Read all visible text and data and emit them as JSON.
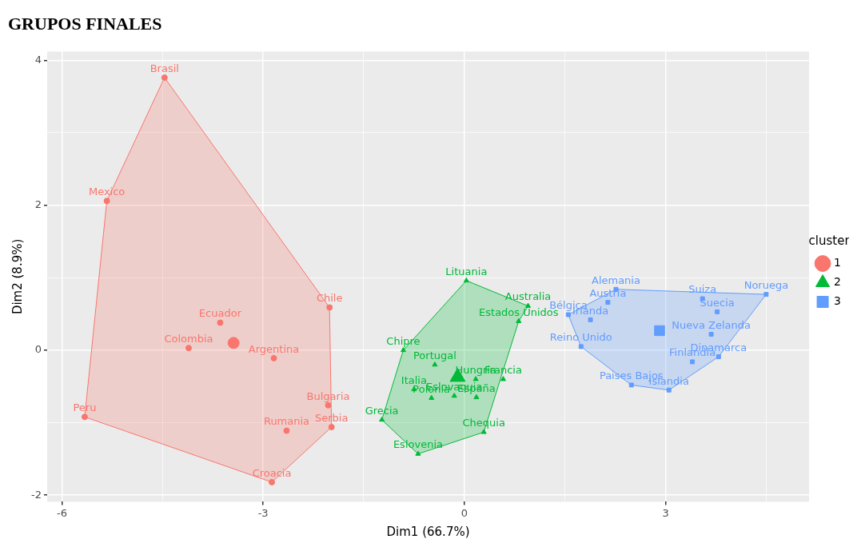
{
  "chart_data": {
    "type": "scatter",
    "title": "GRUPOS FINALES",
    "xlabel": "Dim1 (66.7%)",
    "ylabel": "Dim2 (8.9%)",
    "legend_title": "cluster",
    "legend": "right",
    "grid": true,
    "xlim": [
      -6.22,
      5.14
    ],
    "ylim": [
      -2.09,
      4.12
    ],
    "xticks": [
      -6,
      {
        "value": -4.5,
        "label": null
      },
      -3,
      {
        "value": -1.5,
        "label": null
      },
      0,
      {
        "value": 1.5,
        "label": null
      },
      3,
      {
        "value": 4.5,
        "label": null
      }
    ],
    "yticks": [
      -2,
      {
        "value": -1,
        "label": null
      },
      0,
      {
        "value": 1,
        "label": null
      },
      2,
      {
        "value": 3,
        "label": null
      },
      4
    ],
    "series": [
      {
        "type": "area",
        "color": "#f8766d",
        "x": [
          -4.47,
          -2.01,
          -1.98,
          -2.87,
          -5.66,
          -5.33,
          -4.47
        ],
        "values": [
          3.76,
          0.59,
          -1.06,
          -1.82,
          -0.92,
          2.06,
          3.76
        ]
      },
      {
        "type": "area",
        "color": "#00ba38",
        "x": [
          0.03,
          0.95,
          0.81,
          0.29,
          -0.69,
          -1.23,
          -0.91,
          0.03
        ],
        "values": [
          0.96,
          0.61,
          0.4,
          -1.13,
          -1.43,
          -0.96,
          0.0,
          0.96
        ]
      },
      {
        "type": "area",
        "color": "#619cff",
        "x": [
          2.26,
          4.5,
          3.79,
          3.05,
          2.49,
          1.74,
          1.55,
          2.26
        ],
        "values": [
          0.84,
          0.77,
          -0.09,
          -0.55,
          -0.48,
          0.05,
          0.49,
          0.84
        ]
      },
      {
        "name": "1",
        "color": "#f8766d",
        "marker": "circle",
        "x": [
          -4.47,
          -5.33,
          -2.01,
          -3.64,
          -4.11,
          -2.84,
          -2.03,
          -5.66,
          -1.98,
          -2.65,
          -2.87
        ],
        "values": [
          3.76,
          2.06,
          0.59,
          0.38,
          0.03,
          -0.11,
          -0.76,
          -0.92,
          -1.06,
          -1.11,
          -1.82
        ],
        "value_labels": [
          "Brasil",
          "Mexico",
          "Chile",
          "Ecuador",
          "Colombia",
          "Argentina",
          "Bulgaria",
          "Peru",
          "Serbia",
          "Rumania",
          "Croacia"
        ]
      },
      {
        "name": "2",
        "color": "#00ba38",
        "marker": "triangle",
        "x": [
          0.03,
          0.95,
          0.81,
          -0.91,
          -0.44,
          0.17,
          0.58,
          -0.75,
          -0.49,
          -0.15,
          0.18,
          -1.23,
          0.29,
          -0.69
        ],
        "values": [
          0.96,
          0.61,
          0.4,
          0.0,
          -0.2,
          -0.4,
          -0.4,
          -0.54,
          -0.66,
          -0.63,
          -0.65,
          -0.96,
          -1.13,
          -1.43
        ],
        "value_labels": [
          "Lituania",
          "Australia",
          "Estados Unidos",
          "Chipre",
          "Portugal",
          "Hungria",
          "Francia",
          "Italia",
          "Polonia",
          "Eslovaquia",
          "España",
          "Grecia",
          "Chequia",
          "Eslovenia"
        ]
      },
      {
        "name": "3",
        "color": "#619cff",
        "marker": "square",
        "x": [
          2.26,
          2.14,
          1.88,
          1.55,
          1.74,
          2.49,
          3.05,
          3.4,
          3.79,
          3.68,
          3.77,
          3.55,
          4.5
        ],
        "values": [
          0.84,
          0.66,
          0.42,
          0.49,
          0.05,
          -0.48,
          -0.55,
          -0.16,
          -0.09,
          0.22,
          0.53,
          0.71,
          0.77
        ],
        "value_labels": [
          "Alemania",
          "Austria",
          "Irlanda",
          "Bélgica",
          "Reino Unido",
          "Paises Bajos",
          "Islandia",
          "Finlandia",
          "Dinamarca",
          "Nueva Zelanda",
          "Suecia",
          "Suiza",
          "Noruega"
        ]
      },
      {
        "type": "bubble",
        "color": "#f8766d",
        "marker": "circle",
        "x": [
          -3.44
        ],
        "values": [
          0.1
        ],
        "sizes": [
          1
        ]
      },
      {
        "type": "bubble",
        "color": "#00ba38",
        "marker": "triangle",
        "x": [
          -0.1
        ],
        "values": [
          -0.37
        ],
        "sizes": [
          1
        ]
      },
      {
        "type": "bubble",
        "color": "#619cff",
        "marker": "square",
        "x": [
          2.91
        ],
        "values": [
          0.27
        ],
        "sizes": [
          1
        ]
      }
    ]
  }
}
